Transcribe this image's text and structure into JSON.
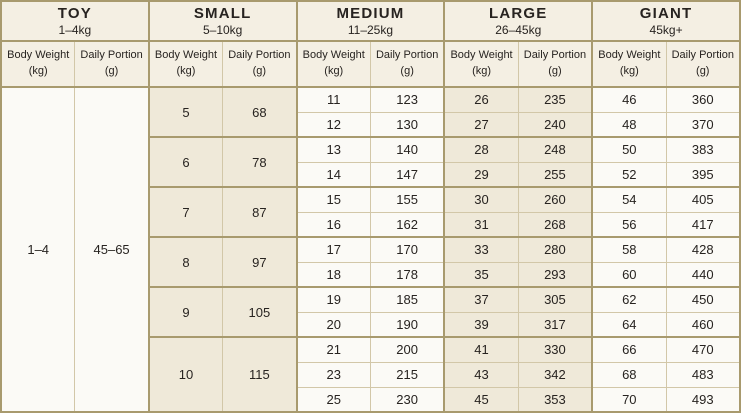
{
  "colors": {
    "border_thick": "#a89a6e",
    "border_thin": "#d2c7a8",
    "header_bg": "#f4efe3",
    "body_light": "#fbfaf6",
    "body_shaded": "#efe9d9",
    "text": "#272320"
  },
  "chart_data": {
    "type": "table",
    "column_headers": {
      "weight_label": "Body Weight",
      "weight_unit": "(kg)",
      "portion_label": "Daily Portion",
      "portion_unit": "(g)"
    },
    "thick_row_starts": [
      0,
      2,
      4,
      6,
      8,
      10
    ],
    "total_body_rows": 13,
    "groups": [
      {
        "name": "TOY",
        "range": "1–4kg",
        "shaded": false,
        "rows": [
          {
            "weight": "1–4",
            "portion": "45–65",
            "span": 13
          }
        ]
      },
      {
        "name": "SMALL",
        "range": "5–10kg",
        "shaded": true,
        "rows": [
          {
            "weight": "5",
            "portion": "68",
            "span": 2
          },
          {
            "weight": "6",
            "portion": "78",
            "span": 2
          },
          {
            "weight": "7",
            "portion": "87",
            "span": 2
          },
          {
            "weight": "8",
            "portion": "97",
            "span": 2
          },
          {
            "weight": "9",
            "portion": "105",
            "span": 2
          },
          {
            "weight": "10",
            "portion": "115",
            "span": 3
          }
        ]
      },
      {
        "name": "MEDIUM",
        "range": "11–25kg",
        "shaded": false,
        "rows": [
          {
            "weight": "11",
            "portion": "123",
            "span": 1
          },
          {
            "weight": "12",
            "portion": "130",
            "span": 1
          },
          {
            "weight": "13",
            "portion": "140",
            "span": 1
          },
          {
            "weight": "14",
            "portion": "147",
            "span": 1
          },
          {
            "weight": "15",
            "portion": "155",
            "span": 1
          },
          {
            "weight": "16",
            "portion": "162",
            "span": 1
          },
          {
            "weight": "17",
            "portion": "170",
            "span": 1
          },
          {
            "weight": "18",
            "portion": "178",
            "span": 1
          },
          {
            "weight": "19",
            "portion": "185",
            "span": 1
          },
          {
            "weight": "20",
            "portion": "190",
            "span": 1
          },
          {
            "weight": "21",
            "portion": "200",
            "span": 1
          },
          {
            "weight": "23",
            "portion": "215",
            "span": 1
          },
          {
            "weight": "25",
            "portion": "230",
            "span": 1
          }
        ]
      },
      {
        "name": "LARGE",
        "range": "26–45kg",
        "shaded": true,
        "rows": [
          {
            "weight": "26",
            "portion": "235",
            "span": 1
          },
          {
            "weight": "27",
            "portion": "240",
            "span": 1
          },
          {
            "weight": "28",
            "portion": "248",
            "span": 1
          },
          {
            "weight": "29",
            "portion": "255",
            "span": 1
          },
          {
            "weight": "30",
            "portion": "260",
            "span": 1
          },
          {
            "weight": "31",
            "portion": "268",
            "span": 1
          },
          {
            "weight": "33",
            "portion": "280",
            "span": 1
          },
          {
            "weight": "35",
            "portion": "293",
            "span": 1
          },
          {
            "weight": "37",
            "portion": "305",
            "span": 1
          },
          {
            "weight": "39",
            "portion": "317",
            "span": 1
          },
          {
            "weight": "41",
            "portion": "330",
            "span": 1
          },
          {
            "weight": "43",
            "portion": "342",
            "span": 1
          },
          {
            "weight": "45",
            "portion": "353",
            "span": 1
          }
        ]
      },
      {
        "name": "GIANT",
        "range": "45kg+",
        "shaded": false,
        "rows": [
          {
            "weight": "46",
            "portion": "360",
            "span": 1
          },
          {
            "weight": "48",
            "portion": "370",
            "span": 1
          },
          {
            "weight": "50",
            "portion": "383",
            "span": 1
          },
          {
            "weight": "52",
            "portion": "395",
            "span": 1
          },
          {
            "weight": "54",
            "portion": "405",
            "span": 1
          },
          {
            "weight": "56",
            "portion": "417",
            "span": 1
          },
          {
            "weight": "58",
            "portion": "428",
            "span": 1
          },
          {
            "weight": "60",
            "portion": "440",
            "span": 1
          },
          {
            "weight": "62",
            "portion": "450",
            "span": 1
          },
          {
            "weight": "64",
            "portion": "460",
            "span": 1
          },
          {
            "weight": "66",
            "portion": "470",
            "span": 1
          },
          {
            "weight": "68",
            "portion": "483",
            "span": 1
          },
          {
            "weight": "70",
            "portion": "493",
            "span": 1
          }
        ]
      }
    ]
  }
}
